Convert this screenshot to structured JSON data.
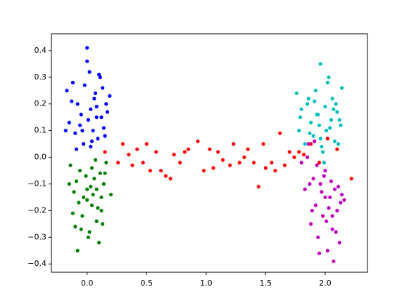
{
  "chart_data": {
    "type": "scatter",
    "xlim": [
      -0.3,
      2.355
    ],
    "ylim": [
      -0.431,
      0.463
    ],
    "xticks": [
      {
        "value": 0,
        "label": "0.0"
      },
      {
        "value": 0.5,
        "label": "0.5"
      },
      {
        "value": 1,
        "label": "1.0"
      },
      {
        "value": 1.5,
        "label": "1.5"
      },
      {
        "value": 2,
        "label": "2.0"
      }
    ],
    "yticks": [
      {
        "value": -0.4,
        "label": "−0.4"
      },
      {
        "value": -0.3,
        "label": "−0.3"
      },
      {
        "value": -0.2,
        "label": "−0.2"
      },
      {
        "value": -0.1,
        "label": "−0.1"
      },
      {
        "value": 0,
        "label": "0.0"
      },
      {
        "value": 0.1,
        "label": "0.1"
      },
      {
        "value": 0.2,
        "label": "0.2"
      },
      {
        "value": 0.3,
        "label": "0.3"
      },
      {
        "value": 0.4,
        "label": "0.4"
      }
    ],
    "grid": false,
    "series": [
      {
        "color": "#0000ff",
        "x": [
          -0.17,
          -0.15,
          -0.12,
          -0.1,
          -0.08,
          -0.05,
          -0.03,
          0.0,
          0.02,
          0.03,
          0.05,
          0.07,
          0.1,
          0.12,
          0.15,
          -0.13,
          -0.06,
          -0.02,
          0.04,
          0.08,
          0.11,
          0.14,
          0.17,
          -0.09,
          0.01,
          0.06,
          0.09,
          0.13,
          -0.04,
          0.0,
          0.03,
          0.16,
          0.19,
          -0.18,
          0.08
        ],
        "values": [
          0.25,
          0.13,
          0.28,
          0.09,
          0.2,
          0.16,
          0.05,
          0.41,
          0.32,
          0.18,
          0.1,
          0.24,
          0.31,
          0.15,
          0.08,
          0.21,
          0.12,
          0.27,
          0.06,
          0.19,
          0.3,
          0.11,
          0.17,
          0.03,
          0.14,
          0.22,
          0.07,
          0.26,
          0.1,
          0.36,
          0.04,
          0.2,
          0.23,
          0.1,
          0.15
        ]
      },
      {
        "color": "#008000",
        "x": [
          -0.15,
          -0.12,
          -0.1,
          -0.08,
          -0.06,
          -0.03,
          0.0,
          0.02,
          0.04,
          0.06,
          0.08,
          0.1,
          0.12,
          0.14,
          0.16,
          -0.14,
          -0.11,
          -0.07,
          -0.04,
          -0.01,
          0.01,
          0.03,
          0.05,
          0.07,
          0.09,
          0.11,
          0.13,
          -0.09,
          0.0,
          0.04,
          0.08,
          0.12,
          -0.05,
          0.2,
          0.15
        ],
        "values": [
          -0.1,
          -0.21,
          -0.26,
          -0.35,
          -0.05,
          -0.15,
          -0.12,
          -0.28,
          -0.18,
          -0.08,
          -0.24,
          -0.32,
          -0.2,
          -0.1,
          -0.02,
          -0.03,
          -0.13,
          -0.17,
          -0.22,
          -0.07,
          -0.3,
          -0.11,
          -0.14,
          -0.01,
          -0.19,
          -0.06,
          -0.25,
          -0.09,
          -0.16,
          -0.04,
          -0.12,
          -0.15,
          -0.27,
          -0.14,
          -0.06
        ]
      },
      {
        "color": "#ff0000",
        "x": [
          0.15,
          0.26,
          0.3,
          0.35,
          0.38,
          0.42,
          0.47,
          0.5,
          0.53,
          0.58,
          0.62,
          0.66,
          0.7,
          0.73,
          0.78,
          0.82,
          0.85,
          0.93,
          0.98,
          1.03,
          1.06,
          1.1,
          1.14,
          1.2,
          1.23,
          1.28,
          1.32,
          1.35,
          1.4,
          1.44,
          1.48,
          1.5,
          1.55,
          1.58,
          1.62,
          1.66,
          1.7,
          1.74,
          1.78,
          1.82,
          1.88,
          1.95,
          2.02,
          2.1,
          2.22
        ],
        "values": [
          0.02,
          -0.02,
          0.05,
          0.01,
          -0.03,
          0.03,
          -0.02,
          0.05,
          -0.05,
          0.02,
          -0.05,
          -0.07,
          -0.08,
          0.01,
          -0.02,
          0.02,
          0.03,
          0.06,
          -0.05,
          0.03,
          -0.04,
          0.02,
          -0.01,
          -0.03,
          0.05,
          -0.02,
          0.0,
          0.03,
          -0.02,
          -0.11,
          0.05,
          -0.04,
          -0.02,
          -0.05,
          0.09,
          -0.03,
          0.02,
          0.0,
          0.02,
          0.01,
          0.05,
          -0.02,
          0.07,
          0.03,
          -0.08
        ]
      },
      {
        "color": "#00bfbf",
        "x": [
          1.76,
          1.78,
          1.8,
          1.83,
          1.85,
          1.88,
          1.9,
          1.92,
          1.94,
          1.96,
          1.98,
          2.0,
          2.02,
          2.04,
          2.06,
          2.08,
          2.1,
          2.12,
          2.14,
          1.79,
          1.87,
          1.91,
          1.95,
          1.99,
          2.03,
          2.07,
          2.11,
          1.97,
          2.01,
          1.93,
          2.05,
          1.86,
          1.96,
          2.09,
          2.13
        ],
        "values": [
          0.24,
          0.1,
          0.18,
          0.05,
          0.2,
          0.13,
          0.08,
          0.25,
          0.16,
          0.35,
          0.02,
          0.19,
          0.28,
          0.11,
          0.22,
          0.06,
          0.17,
          0.14,
          0.26,
          0.15,
          0.09,
          0.21,
          0.12,
          -0.02,
          0.3,
          0.18,
          0.05,
          0.04,
          0.1,
          0.16,
          0.14,
          0.22,
          0.07,
          0.2,
          0.12
        ]
      },
      {
        "color": "#bf00bf",
        "x": [
          1.8,
          1.83,
          1.86,
          1.88,
          1.9,
          1.92,
          1.94,
          1.96,
          1.98,
          2.0,
          2.02,
          2.04,
          2.06,
          2.08,
          2.1,
          2.12,
          2.14,
          2.16,
          1.85,
          1.89,
          1.93,
          1.97,
          2.01,
          2.05,
          2.09,
          2.13,
          1.95,
          1.99,
          2.03,
          2.07,
          2.11,
          1.91,
          2.0,
          2.06,
          1.87
        ],
        "values": [
          -0.02,
          -0.12,
          0.05,
          -0.25,
          -0.08,
          -0.18,
          -0.3,
          -0.1,
          -0.22,
          -0.05,
          -0.35,
          -0.15,
          -0.27,
          -0.12,
          -0.2,
          -0.32,
          -0.14,
          -0.16,
          0.0,
          -0.2,
          -0.03,
          -0.13,
          -0.24,
          -0.09,
          -0.28,
          -0.17,
          -0.36,
          -0.07,
          -0.19,
          -0.39,
          -0.11,
          0.06,
          -0.15,
          -0.22,
          -0.1
        ]
      }
    ]
  }
}
